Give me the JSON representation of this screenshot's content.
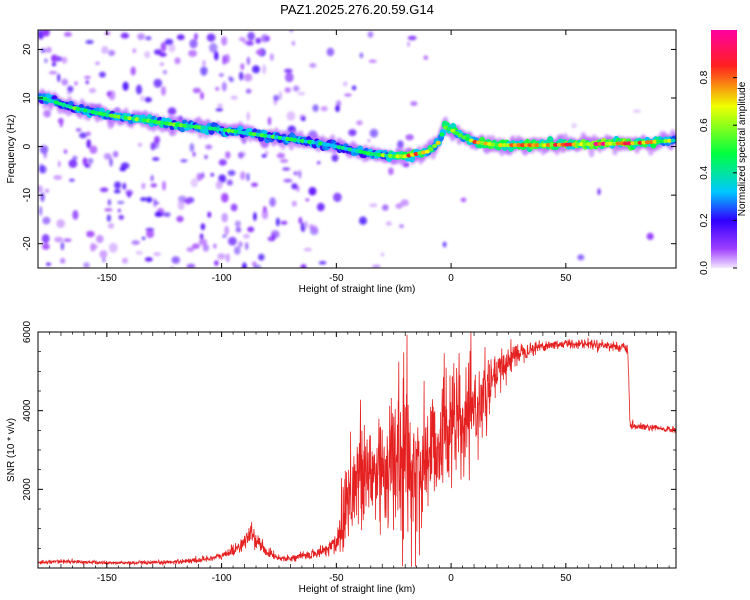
{
  "figure": {
    "title": "PAZ1.2025.276.20.59.G14"
  },
  "chart_data": [
    {
      "type": "heatmap",
      "title": "",
      "xlabel": "Height of straight line (km)",
      "ylabel": "Frequency (Hz)",
      "xlim": [
        -180,
        98
      ],
      "ylim": [
        -25,
        24
      ],
      "xticks": [
        -150,
        -100,
        -50,
        0,
        50
      ],
      "yticks": [
        -20,
        -10,
        0,
        10,
        20
      ],
      "colorbar": {
        "label": "Normalized spectral amplitude",
        "range": [
          0,
          1
        ],
        "ticks": [
          0.0,
          0.2,
          0.4,
          0.6,
          0.8
        ],
        "colormap": [
          "#f2e8ff",
          "#a040ff",
          "#3000ff",
          "#00c8ff",
          "#00ff40",
          "#f0ff00",
          "#ff2020",
          "#ff00a0"
        ]
      },
      "ridge": {
        "description_points_x": [
          -178,
          -165,
          -150,
          -135,
          -120,
          -100,
          -85,
          -70,
          -55,
          -45,
          -35,
          -25,
          -20,
          -10,
          -5,
          -3,
          0,
          5,
          10,
          20,
          40,
          60,
          80,
          98
        ],
        "frequency_hz": [
          10,
          8,
          6.5,
          5.5,
          4.5,
          3.5,
          2.5,
          1.5,
          0.5,
          -0.5,
          -1.5,
          -2,
          -2,
          -1,
          1,
          4,
          3.5,
          2,
          1,
          0.3,
          0.3,
          0.5,
          0.7,
          1.3
        ],
        "peak_amplitude": [
          0.5,
          0.55,
          0.6,
          0.6,
          0.6,
          0.55,
          0.55,
          0.5,
          0.5,
          0.45,
          0.55,
          0.7,
          0.9,
          0.75,
          0.75,
          0.7,
          0.75,
          0.75,
          0.8,
          0.85,
          0.85,
          0.95,
          0.95,
          0.6
        ]
      }
    },
    {
      "type": "line",
      "title": "",
      "xlabel": "Height of straight line (km)",
      "ylabel": "SNR (10 * v/v)",
      "xlim": [
        -180,
        98
      ],
      "ylim": [
        0,
        6000
      ],
      "xticks": [
        -150,
        -100,
        -50,
        0,
        50
      ],
      "yticks": [
        2000,
        4000,
        6000
      ],
      "series": [
        {
          "color": "#e52020",
          "x": [
            -180,
            -170,
            -160,
            -150,
            -140,
            -130,
            -120,
            -110,
            -100,
            -95,
            -90,
            -87,
            -85,
            -80,
            -75,
            -70,
            -65,
            -60,
            -55,
            -50,
            -47,
            -45,
            -40,
            -35,
            -30,
            -25,
            -20,
            -15,
            -10,
            -5,
            0,
            5,
            10,
            15,
            20,
            25,
            30,
            40,
            50,
            60,
            70,
            75,
            77,
            78,
            80,
            90,
            98
          ],
          "y": [
            150,
            170,
            150,
            130,
            130,
            130,
            160,
            200,
            300,
            450,
            650,
            900,
            700,
            400,
            250,
            250,
            300,
            350,
            450,
            650,
            1300,
            2000,
            2300,
            2300,
            2600,
            2600,
            2900,
            2300,
            2900,
            3300,
            3800,
            3500,
            4000,
            4400,
            4900,
            5300,
            5500,
            5650,
            5700,
            5700,
            5650,
            5600,
            5550,
            3600,
            3600,
            3550,
            3500
          ],
          "noise": [
            40,
            40,
            40,
            40,
            40,
            40,
            50,
            60,
            80,
            120,
            160,
            200,
            180,
            100,
            60,
            60,
            80,
            100,
            150,
            300,
            900,
            1300,
            1300,
            1400,
            1500,
            1600,
            1800,
            1500,
            1500,
            1300,
            1400,
            1100,
            900,
            700,
            500,
            350,
            200,
            120,
            100,
            100,
            100,
            100,
            100,
            100,
            80,
            70,
            70
          ]
        }
      ]
    }
  ]
}
